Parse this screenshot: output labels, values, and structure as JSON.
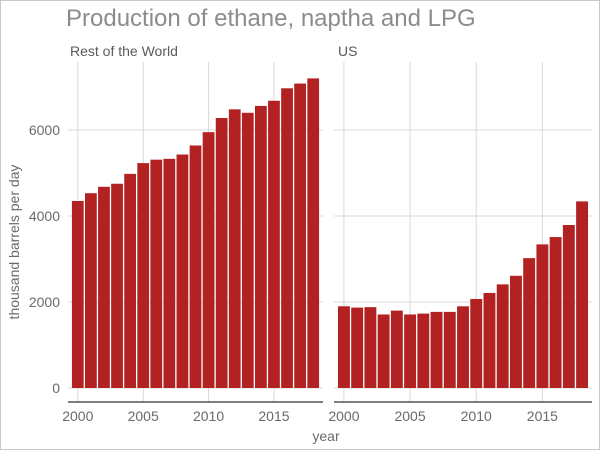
{
  "chart_data": {
    "type": "bar",
    "title": "Production of ethane, naptha and LPG",
    "xlabel": "year",
    "ylabel": "thousand barrels per day",
    "ylim": [
      0,
      7400
    ],
    "y_ticks": [
      0,
      2000,
      4000,
      6000
    ],
    "x_ticks": [
      2000,
      2005,
      2010,
      2015
    ],
    "grid": true,
    "bar_color": "#b22222",
    "x": [
      2000,
      2001,
      2002,
      2003,
      2004,
      2005,
      2006,
      2007,
      2008,
      2009,
      2010,
      2011,
      2012,
      2013,
      2014,
      2015,
      2016,
      2017,
      2018
    ],
    "panels": [
      {
        "name": "Rest of the World",
        "values": [
          4350,
          4530,
          4680,
          4750,
          4980,
          5230,
          5310,
          5330,
          5430,
          5640,
          5950,
          6280,
          6480,
          6400,
          6560,
          6680,
          6970,
          7080,
          7200
        ]
      },
      {
        "name": "US",
        "values": [
          1900,
          1870,
          1880,
          1710,
          1800,
          1710,
          1730,
          1770,
          1770,
          1900,
          2070,
          2210,
          2410,
          2610,
          3020,
          3340,
          3510,
          3790,
          4340
        ]
      }
    ]
  }
}
